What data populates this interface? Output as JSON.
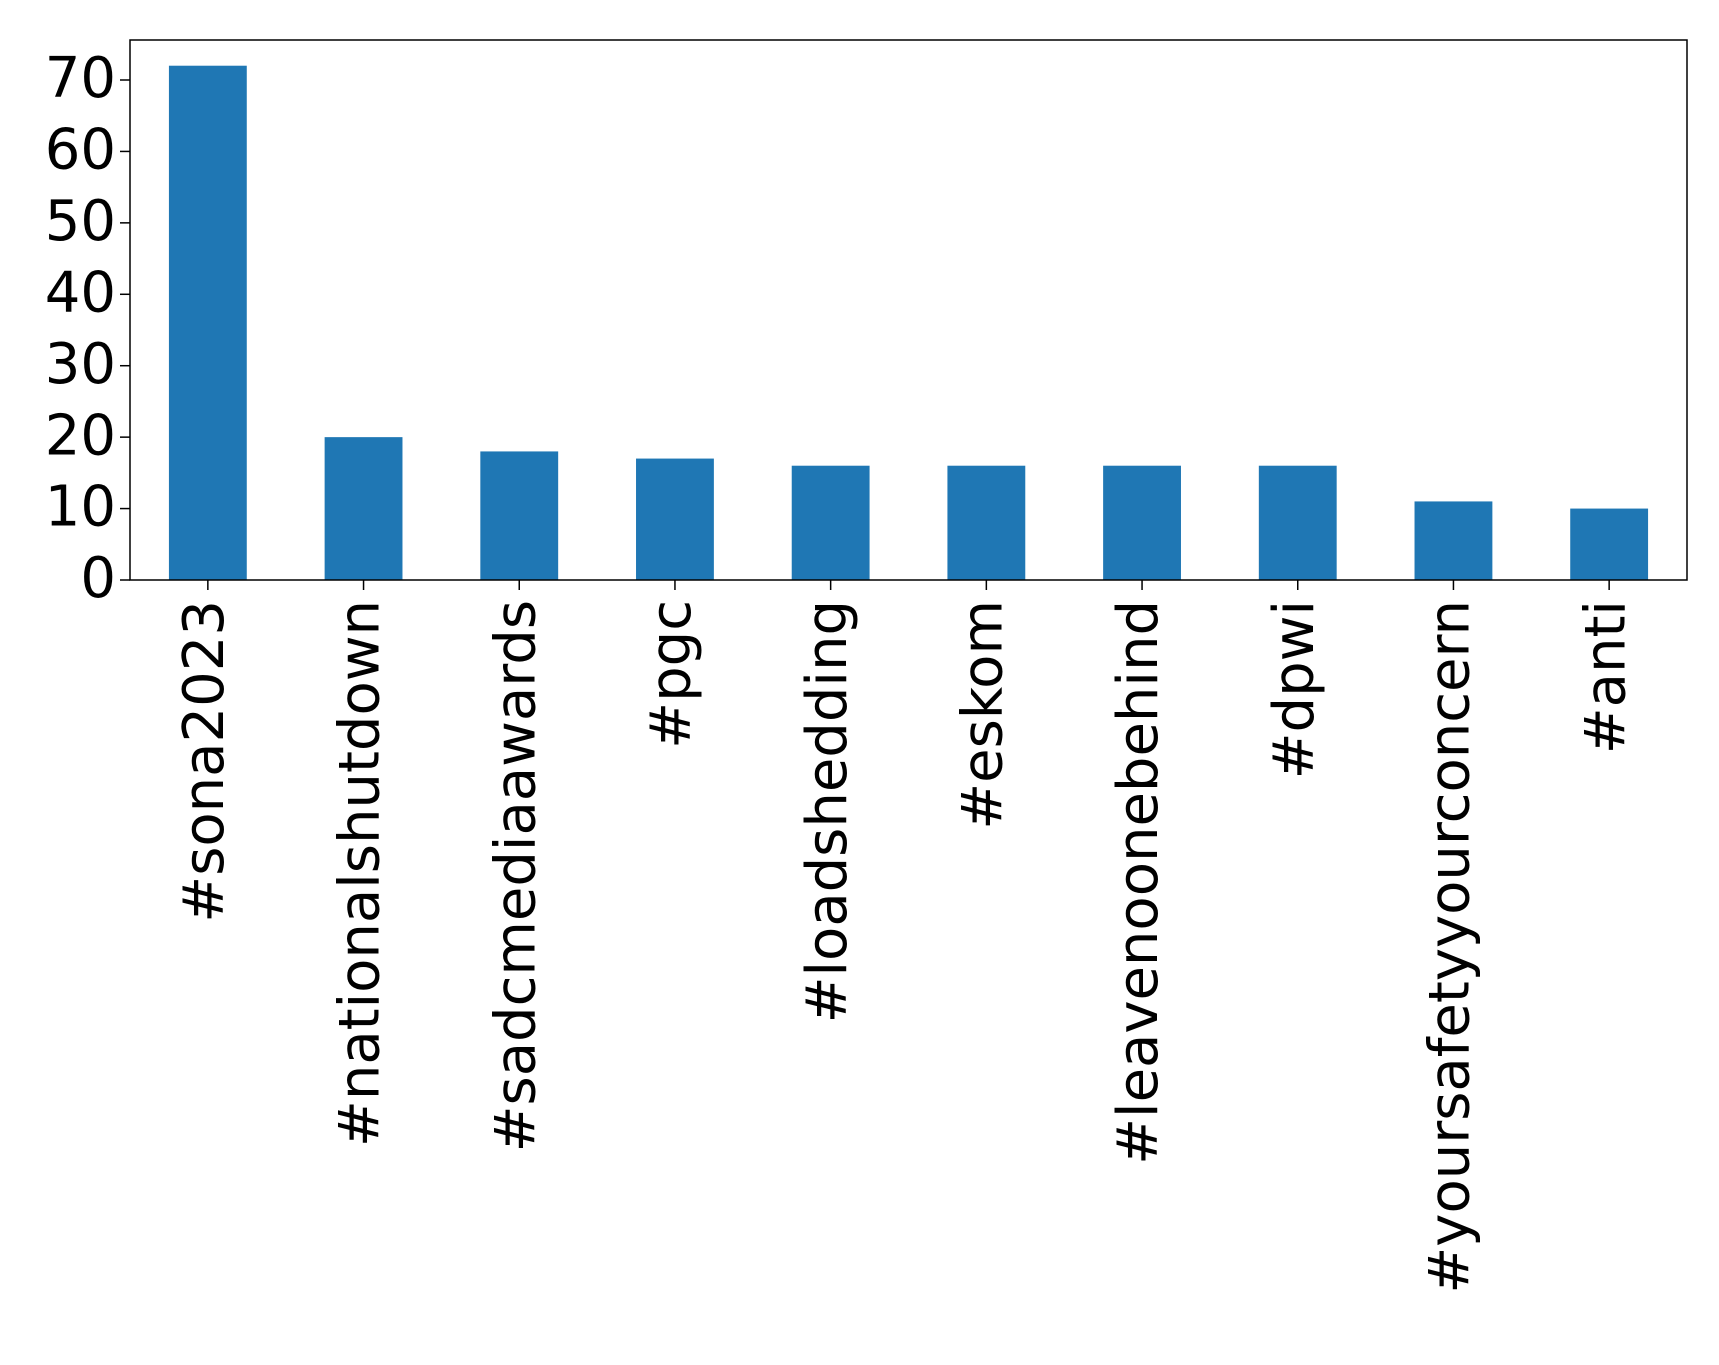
{
  "chart_data": {
    "type": "bar",
    "categories": [
      "#sona2023",
      "#nationalshutdown",
      "#sadcmediaawards",
      "#pgc",
      "#loadshedding",
      "#eskom",
      "#leavenoonebehind",
      "#dpwi",
      "#yoursafetyyourconcern",
      "#anti"
    ],
    "values": [
      72,
      20,
      18,
      17,
      16,
      16,
      16,
      16,
      11,
      10
    ],
    "title": "",
    "xlabel": "",
    "ylabel": "",
    "ylim": [
      0,
      75.6
    ],
    "yticks": [
      0,
      10,
      20,
      30,
      40,
      50,
      60,
      70
    ],
    "grid": false,
    "legend": "none",
    "bar_color": "#1f77b4"
  }
}
